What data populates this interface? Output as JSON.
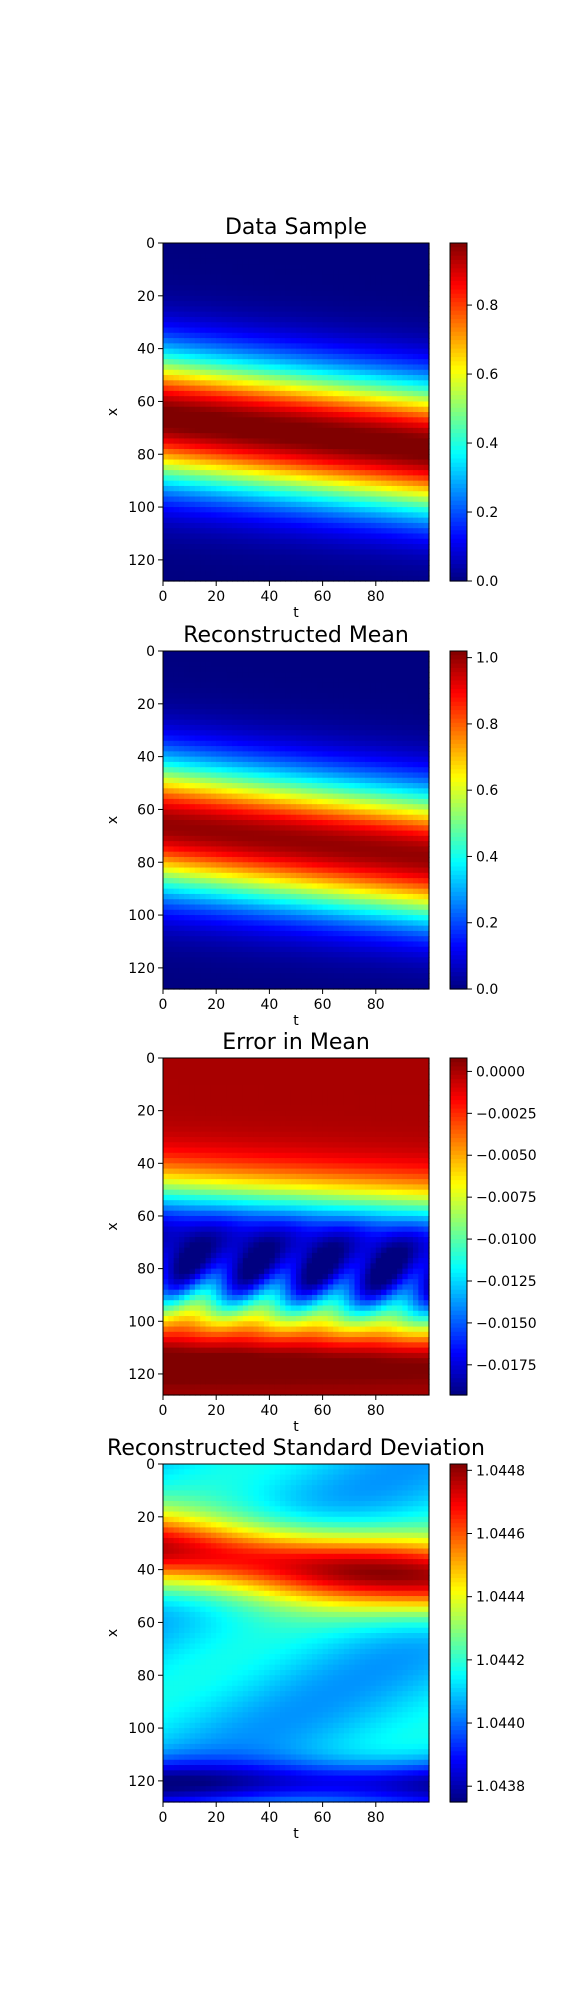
{
  "chart_data": [
    {
      "type": "heatmap",
      "title": "Data Sample",
      "xlabel": "t",
      "ylabel": "x",
      "xlim": [
        0,
        100
      ],
      "ylim": [
        128,
        0
      ],
      "xticks": [
        0,
        20,
        40,
        60,
        80
      ],
      "yticks": [
        0,
        20,
        40,
        60,
        80,
        100,
        120
      ],
      "colormap": "jet",
      "colorbar": {
        "min": 0.0,
        "max": 0.98,
        "ticks": [
          "0.0",
          "0.2",
          "0.4",
          "0.6",
          "0.8"
        ]
      },
      "description_values": {
        "peak_center_x_at_t0": 66,
        "peak_center_x_at_t100": 78,
        "width": 17,
        "kind": "traveling bump"
      }
    },
    {
      "type": "heatmap",
      "title": "Reconstructed Mean",
      "xlabel": "t",
      "ylabel": "x",
      "xlim": [
        0,
        100
      ],
      "ylim": [
        128,
        0
      ],
      "xticks": [
        0,
        20,
        40,
        60,
        80
      ],
      "yticks": [
        0,
        20,
        40,
        60,
        80,
        100,
        120
      ],
      "colormap": "jet",
      "colorbar": {
        "min": 0.0,
        "max": 1.02,
        "ticks": [
          "0.0",
          "0.2",
          "0.4",
          "0.6",
          "0.8",
          "1.0"
        ]
      },
      "description_values": {
        "peak_center_x_at_t0": 66,
        "peak_center_x_at_t100": 78,
        "width": 17,
        "kind": "traveling bump"
      }
    },
    {
      "type": "heatmap",
      "title": "Error in Mean",
      "xlabel": "t",
      "ylabel": "x",
      "xlim": [
        0,
        100
      ],
      "ylim": [
        128,
        0
      ],
      "xticks": [
        0,
        20,
        40,
        60,
        80
      ],
      "yticks": [
        0,
        20,
        40,
        60,
        80,
        100,
        120
      ],
      "colormap": "jet",
      "colorbar": {
        "min": -0.0193,
        "max": 0.0008,
        "ticks": [
          "0.0000",
          "−0.0025",
          "−0.0050",
          "−0.0075",
          "−0.0100",
          "−0.0125",
          "−0.0150",
          "−0.0175"
        ]
      },
      "description_values": {
        "min_region_center_x": 72,
        "min_value": -0.019,
        "near_zero_rows": [
          0,
          10,
          120,
          128
        ]
      }
    },
    {
      "type": "heatmap",
      "title": "Reconstructed Standard Deviation",
      "xlabel": "t",
      "ylabel": "x",
      "xlim": [
        0,
        100
      ],
      "ylim": [
        128,
        0
      ],
      "xticks": [
        0,
        20,
        40,
        60,
        80
      ],
      "yticks": [
        0,
        20,
        40,
        60,
        80,
        100,
        120
      ],
      "colormap": "jet",
      "colorbar": {
        "min": 1.04375,
        "max": 1.04482,
        "ticks": [
          "1.0448",
          "1.0446",
          "1.0444",
          "1.0442",
          "1.0440",
          "1.0438"
        ]
      },
      "description_values": {
        "high_band_center_x_at_t0": 33,
        "high_band_center_x_at_t100": 43,
        "low_band_center_x": 120
      }
    }
  ]
}
